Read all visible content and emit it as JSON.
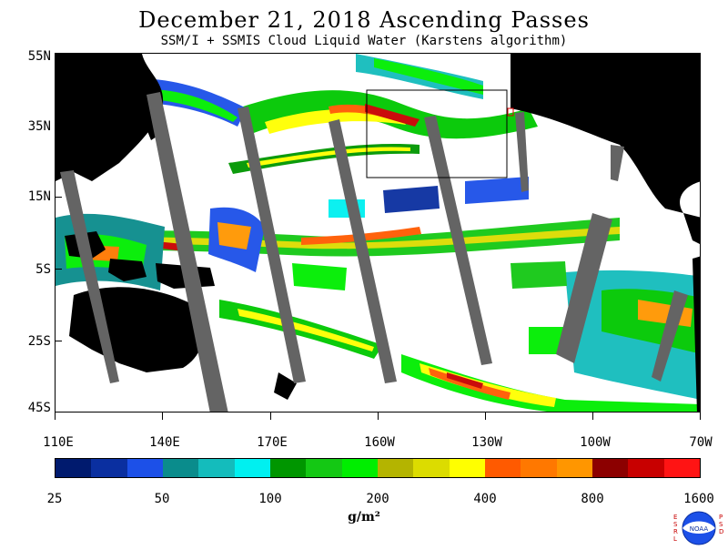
{
  "title": "December 21, 2018  Ascending Passes",
  "subtitle": "SSM/I + SSMIS Cloud Liquid Water (Karstens algorithm)",
  "map": {
    "lat_labels": [
      "55N",
      "35N",
      "15N",
      "5S",
      "25S",
      "45S"
    ],
    "lon_labels": [
      "110E",
      "140E",
      "170E",
      "160W",
      "130W",
      "100W",
      "70W"
    ]
  },
  "colorbar": {
    "labels": [
      "25",
      "50",
      "100",
      "200",
      "400",
      "800",
      "1600"
    ],
    "units": "g/m²",
    "colors": [
      "#001a6e",
      "#0a2fa0",
      "#1c50e8",
      "#0a8c8c",
      "#14bcbc",
      "#00f0f0",
      "#009600",
      "#14c814",
      "#00ee00",
      "#b4b400",
      "#dcdc00",
      "#ffff00",
      "#ff5a00",
      "#ff7800",
      "#ff9600",
      "#8c0000",
      "#c80000",
      "#ff1414"
    ]
  },
  "logo": {
    "left_letters": "ESRL",
    "right_letters": "PSD",
    "badge": "NOAA"
  }
}
